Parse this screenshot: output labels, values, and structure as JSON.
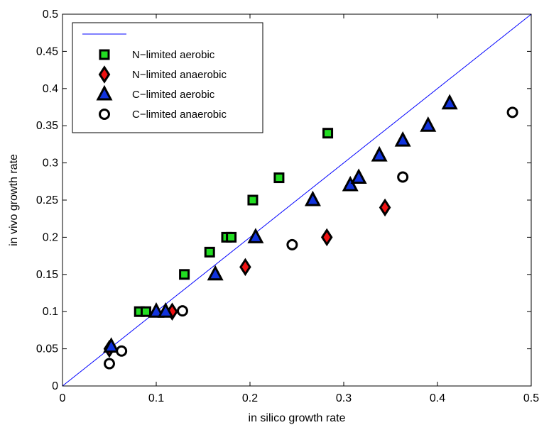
{
  "chart_data": {
    "type": "scatter",
    "xlabel": "in silico growth rate",
    "ylabel": "in vivo growth rate",
    "xlim": [
      0,
      0.5
    ],
    "ylim": [
      0,
      0.5
    ],
    "xticks": [
      "0",
      "0.1",
      "0.2",
      "0.3",
      "0.4",
      "0.5"
    ],
    "yticks": [
      "0",
      "0.05",
      "0.1",
      "0.15",
      "0.2",
      "0.25",
      "0.3",
      "0.35",
      "0.4",
      "0.45",
      "0.5"
    ],
    "legend_position": "top-left",
    "reference_line": {
      "x": [
        0,
        0.5
      ],
      "y": [
        0,
        0.5
      ],
      "color": "#0000ff",
      "label": ""
    },
    "series": [
      {
        "name": "N−limited aerobic",
        "marker": "square",
        "color": "#22dd22",
        "points": [
          [
            0.082,
            0.1
          ],
          [
            0.089,
            0.1
          ],
          [
            0.13,
            0.15
          ],
          [
            0.157,
            0.18
          ],
          [
            0.175,
            0.2
          ],
          [
            0.18,
            0.2
          ],
          [
            0.203,
            0.25
          ],
          [
            0.231,
            0.28
          ],
          [
            0.283,
            0.34
          ]
        ]
      },
      {
        "name": "N−limited anaerobic",
        "marker": "diamond",
        "color": "#ee1111",
        "points": [
          [
            0.05,
            0.05
          ],
          [
            0.117,
            0.1
          ],
          [
            0.195,
            0.16
          ],
          [
            0.282,
            0.2
          ],
          [
            0.344,
            0.24
          ]
        ]
      },
      {
        "name": "C−limited aerobic",
        "marker": "triangle",
        "color": "#1133dd",
        "points": [
          [
            0.052,
            0.053
          ],
          [
            0.1,
            0.1
          ],
          [
            0.11,
            0.1
          ],
          [
            0.163,
            0.15
          ],
          [
            0.206,
            0.2
          ],
          [
            0.267,
            0.25
          ],
          [
            0.307,
            0.27
          ],
          [
            0.316,
            0.28
          ],
          [
            0.338,
            0.31
          ],
          [
            0.363,
            0.33
          ],
          [
            0.39,
            0.35
          ],
          [
            0.413,
            0.38
          ]
        ]
      },
      {
        "name": "C−limited anaerobic",
        "marker": "circle",
        "color": "#ffffff",
        "points": [
          [
            0.05,
            0.03
          ],
          [
            0.063,
            0.047
          ],
          [
            0.128,
            0.101
          ],
          [
            0.245,
            0.19
          ],
          [
            0.363,
            0.281
          ],
          [
            0.48,
            0.368
          ]
        ]
      }
    ]
  }
}
